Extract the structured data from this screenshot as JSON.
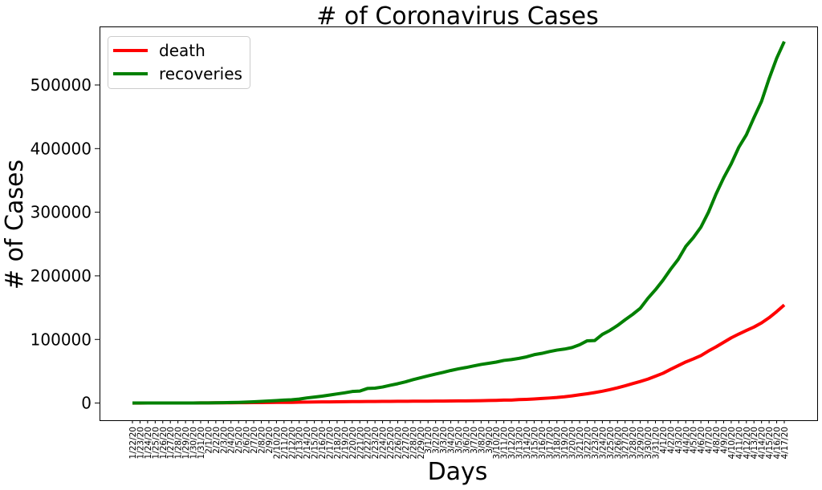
{
  "chart_data": {
    "type": "line",
    "title": "# of Coronavirus Cases",
    "xlabel": "Days",
    "ylabel": "# of Cases",
    "ylim": [
      -27000,
      592000
    ],
    "yticks": [
      0,
      100000,
      200000,
      300000,
      400000,
      500000
    ],
    "ytick_labels": [
      "0",
      "100000",
      "200000",
      "300000",
      "400000",
      "500000"
    ],
    "grid": false,
    "legend_position": "top-left",
    "x": [
      "1/22/20",
      "1/23/20",
      "1/24/20",
      "1/25/20",
      "1/26/20",
      "1/27/20",
      "1/28/20",
      "1/29/20",
      "1/30/20",
      "1/31/20",
      "2/1/20",
      "2/2/20",
      "2/3/20",
      "2/4/20",
      "2/5/20",
      "2/6/20",
      "2/7/20",
      "2/8/20",
      "2/9/20",
      "2/10/20",
      "2/11/20",
      "2/12/20",
      "2/13/20",
      "2/14/20",
      "2/15/20",
      "2/16/20",
      "2/17/20",
      "2/18/20",
      "2/19/20",
      "2/20/20",
      "2/21/20",
      "2/22/20",
      "2/23/20",
      "2/24/20",
      "2/25/20",
      "2/26/20",
      "2/27/20",
      "2/28/20",
      "2/29/20",
      "3/1/20",
      "3/2/20",
      "3/3/20",
      "3/4/20",
      "3/5/20",
      "3/6/20",
      "3/7/20",
      "3/8/20",
      "3/9/20",
      "3/10/20",
      "3/11/20",
      "3/12/20",
      "3/13/20",
      "3/14/20",
      "3/15/20",
      "3/16/20",
      "3/17/20",
      "3/18/20",
      "3/19/20",
      "3/20/20",
      "3/21/20",
      "3/22/20",
      "3/23/20",
      "3/24/20",
      "3/25/20",
      "3/26/20",
      "3/27/20",
      "3/28/20",
      "3/29/20",
      "3/30/20",
      "3/31/20",
      "4/1/20",
      "4/2/20",
      "4/3/20",
      "4/4/20",
      "4/5/20",
      "4/6/20",
      "4/7/20",
      "4/8/20",
      "4/9/20",
      "4/10/20",
      "4/11/20",
      "4/12/20",
      "4/13/20",
      "4/14/20",
      "4/15/20",
      "4/16/20",
      "4/17/20"
    ],
    "series": [
      {
        "name": "death",
        "color": "#ff0000",
        "values": [
          17,
          18,
          26,
          42,
          56,
          82,
          131,
          133,
          171,
          213,
          259,
          362,
          426,
          492,
          564,
          634,
          719,
          806,
          906,
          1013,
          1113,
          1118,
          1371,
          1523,
          1666,
          1770,
          1868,
          2007,
          2122,
          2247,
          2251,
          2458,
          2469,
          2629,
          2708,
          2770,
          2814,
          2872,
          2941,
          2996,
          3085,
          3160,
          3254,
          3348,
          3460,
          3558,
          3802,
          3988,
          4262,
          4615,
          4720,
          5404,
          5819,
          6440,
          7126,
          7905,
          8733,
          9867,
          11299,
          12973,
          14623,
          16497,
          18615,
          21181,
          23970,
          27198,
          30652,
          33925,
          37582,
          42107,
          46809,
          52983,
          58787,
          64606,
          69374,
          74565,
          81865,
          88338,
          95455,
          102525,
          108503,
          114091,
          119482,
          125984,
          134177,
          143801,
          154156
        ]
      },
      {
        "name": "recoveries",
        "color": "#008000",
        "values": [
          28,
          30,
          36,
          39,
          52,
          61,
          107,
          126,
          143,
          222,
          284,
          472,
          623,
          852,
          1124,
          1487,
          2011,
          2616,
          3244,
          3946,
          4683,
          5150,
          6295,
          8058,
          9395,
          10865,
          12583,
          14352,
          16121,
          18177,
          18890,
          22886,
          23394,
          25227,
          27905,
          30384,
          33277,
          36711,
          39782,
          42716,
          45602,
          48228,
          51170,
          53796,
          55866,
          58359,
          60695,
          62512,
          64404,
          67003,
          68324,
          70251,
          72624,
          76034,
          78088,
          80840,
          83207,
          84854,
          87256,
          91676,
          97882,
          98351,
          108000,
          114217,
          121966,
          130911,
          139415,
          148904,
          164566,
          178034,
          193177,
          210263,
          225796,
          246152,
          260012,
          276515,
          300054,
          328661,
          353975,
          376100,
          402110,
          421722,
          448655,
          474261,
          510000,
          542107,
          568343
        ]
      }
    ]
  }
}
